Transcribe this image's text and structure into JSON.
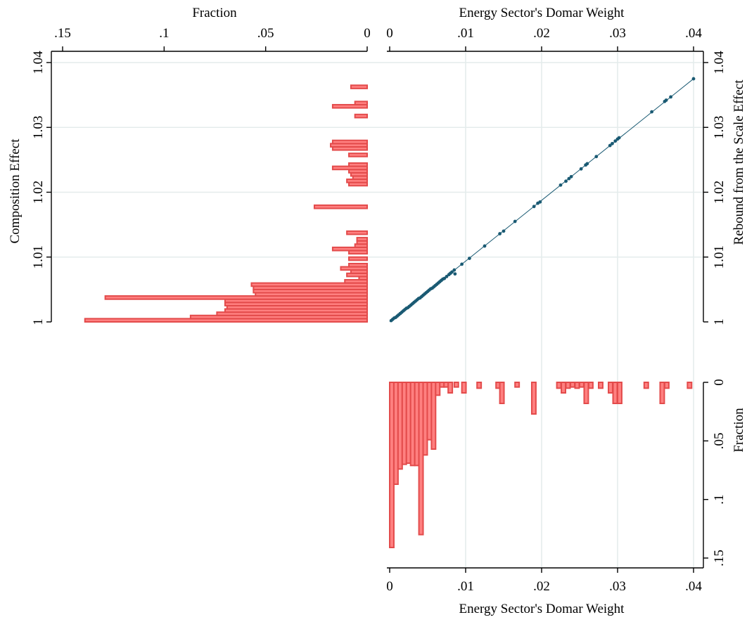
{
  "colors": {
    "bar_fill": "#ff8080",
    "bar_stroke": "#e34b4b",
    "scatter": "#1a5a73",
    "grid": "#e4ecec"
  },
  "chart_data": [
    {
      "id": "scatter",
      "type": "scatter",
      "xlabel": "Energy Sector's Domar Weight",
      "ylabel_left": "Composition Effect",
      "ylabel_right": "Rebound from the Scale Effect",
      "xlim": [
        0,
        0.04
      ],
      "ylim": [
        1,
        1.04
      ],
      "xticks": [
        {
          "v": 0,
          "label": "0"
        },
        {
          "v": 0.01,
          "label": ".01"
        },
        {
          "v": 0.02,
          "label": ".02"
        },
        {
          "v": 0.03,
          "label": ".03"
        },
        {
          "v": 0.04,
          "label": ".04"
        }
      ],
      "yticks": [
        {
          "v": 1,
          "label": "1"
        },
        {
          "v": 1.01,
          "label": "1.01"
        },
        {
          "v": 1.02,
          "label": "1.02"
        },
        {
          "v": 1.03,
          "label": "1.03"
        },
        {
          "v": 1.04,
          "label": "1.04"
        }
      ],
      "grid": true,
      "fit_line": {
        "x": [
          0,
          0.04
        ],
        "y": [
          1,
          1.0375
        ]
      },
      "points": [
        [
          0.0002,
          1.0002
        ],
        [
          0.0004,
          1.0004
        ],
        [
          0.0006,
          1.0006
        ],
        [
          0.0008,
          1.0007
        ],
        [
          0.001,
          1.0009
        ],
        [
          0.0012,
          1.0011
        ],
        [
          0.0014,
          1.0013
        ],
        [
          0.0016,
          1.0015
        ],
        [
          0.0018,
          1.0017
        ],
        [
          0.002,
          1.0019
        ],
        [
          0.0022,
          1.0021
        ],
        [
          0.0024,
          1.0022
        ],
        [
          0.0026,
          1.0024
        ],
        [
          0.0028,
          1.0026
        ],
        [
          0.003,
          1.0028
        ],
        [
          0.0032,
          1.003
        ],
        [
          0.0034,
          1.0032
        ],
        [
          0.0036,
          1.0034
        ],
        [
          0.0038,
          1.0036
        ],
        [
          0.004,
          1.0037
        ],
        [
          0.0042,
          1.0039
        ],
        [
          0.0044,
          1.0041
        ],
        [
          0.0046,
          1.0043
        ],
        [
          0.0048,
          1.0045
        ],
        [
          0.005,
          1.0047
        ],
        [
          0.0052,
          1.0049
        ],
        [
          0.0054,
          1.0051
        ],
        [
          0.0056,
          1.0052
        ],
        [
          0.0058,
          1.0054
        ],
        [
          0.006,
          1.0056
        ],
        [
          0.0062,
          1.0058
        ],
        [
          0.0064,
          1.006
        ],
        [
          0.0066,
          1.0062
        ],
        [
          0.0068,
          1.0064
        ],
        [
          0.007,
          1.0066
        ],
        [
          0.0072,
          1.0067
        ],
        [
          0.0075,
          1.007
        ],
        [
          0.0078,
          1.0073
        ],
        [
          0.008,
          1.0075
        ],
        [
          0.0082,
          1.0077
        ],
        [
          0.0085,
          1.008
        ],
        [
          0.0086,
          1.0074
        ],
        [
          0.0095,
          1.0089
        ],
        [
          0.0105,
          1.0098
        ],
        [
          0.0125,
          1.0117
        ],
        [
          0.0145,
          1.0136
        ],
        [
          0.015,
          1.014
        ],
        [
          0.0165,
          1.0155
        ],
        [
          0.019,
          1.0178
        ],
        [
          0.0195,
          1.0183
        ],
        [
          0.0198,
          1.0185
        ],
        [
          0.0225,
          1.0211
        ],
        [
          0.0232,
          1.0217
        ],
        [
          0.0236,
          1.0221
        ],
        [
          0.0239,
          1.0224
        ],
        [
          0.0252,
          1.0236
        ],
        [
          0.0258,
          1.0242
        ],
        [
          0.026,
          1.0244
        ],
        [
          0.0272,
          1.0255
        ],
        [
          0.029,
          1.0272
        ],
        [
          0.0293,
          1.0275
        ],
        [
          0.0297,
          1.0279
        ],
        [
          0.03,
          1.0282
        ],
        [
          0.0302,
          1.0284
        ],
        [
          0.0345,
          1.0324
        ],
        [
          0.0362,
          1.034
        ],
        [
          0.0364,
          1.0342
        ],
        [
          0.037,
          1.0347
        ],
        [
          0.04,
          1.0375
        ]
      ]
    },
    {
      "id": "left_hist",
      "type": "bar",
      "orientation": "horizontal",
      "value_label": "Fraction",
      "category_axis": "Composition Effect",
      "value_ticks": [
        {
          "v": 0.15,
          "label": ".15"
        },
        {
          "v": 0.1,
          "label": ".1"
        },
        {
          "v": 0.05,
          "label": ".05"
        },
        {
          "v": 0,
          "label": "0"
        }
      ],
      "value_range": [
        0,
        0.15
      ],
      "bin_width": 0.0005,
      "bins": [
        {
          "y": 1.0,
          "value": 0.139
        },
        {
          "y": 1.0005,
          "value": 0.087
        },
        {
          "y": 1.001,
          "value": 0.074
        },
        {
          "y": 1.0015,
          "value": 0.07
        },
        {
          "y": 1.002,
          "value": 0.069
        },
        {
          "y": 1.0025,
          "value": 0.07
        },
        {
          "y": 1.003,
          "value": 0.07
        },
        {
          "y": 1.0035,
          "value": 0.129
        },
        {
          "y": 1.004,
          "value": 0.055
        },
        {
          "y": 1.0045,
          "value": 0.056
        },
        {
          "y": 1.005,
          "value": 0.056
        },
        {
          "y": 1.0055,
          "value": 0.057
        },
        {
          "y": 1.006,
          "value": 0.011
        },
        {
          "y": 1.0065,
          "value": 0.004
        },
        {
          "y": 1.007,
          "value": 0.01
        },
        {
          "y": 1.0075,
          "value": 0.008
        },
        {
          "y": 1.008,
          "value": 0.013
        },
        {
          "y": 1.0085,
          "value": 0.009
        },
        {
          "y": 1.0095,
          "value": 0.009
        },
        {
          "y": 1.0105,
          "value": 0.009
        },
        {
          "y": 1.011,
          "value": 0.017
        },
        {
          "y": 1.0115,
          "value": 0.006
        },
        {
          "y": 1.012,
          "value": 0.005
        },
        {
          "y": 1.0125,
          "value": 0.005
        },
        {
          "y": 1.0135,
          "value": 0.01
        },
        {
          "y": 1.0175,
          "value": 0.026
        },
        {
          "y": 1.021,
          "value": 0.009
        },
        {
          "y": 1.0215,
          "value": 0.01
        },
        {
          "y": 1.022,
          "value": 0.007
        },
        {
          "y": 1.0225,
          "value": 0.008
        },
        {
          "y": 1.023,
          "value": 0.009
        },
        {
          "y": 1.0235,
          "value": 0.017
        },
        {
          "y": 1.024,
          "value": 0.009
        },
        {
          "y": 1.0255,
          "value": 0.009
        },
        {
          "y": 1.0265,
          "value": 0.017
        },
        {
          "y": 1.027,
          "value": 0.018
        },
        {
          "y": 1.0275,
          "value": 0.017
        },
        {
          "y": 1.0315,
          "value": 0.006
        },
        {
          "y": 1.033,
          "value": 0.017
        },
        {
          "y": 1.0335,
          "value": 0.006
        },
        {
          "y": 1.036,
          "value": 0.008
        }
      ]
    },
    {
      "id": "bottom_hist",
      "type": "bar",
      "orientation": "vertical",
      "value_label": "Fraction",
      "category_label": "Energy Sector's Domar Weight",
      "category_ticks": [
        {
          "v": 0,
          "label": "0"
        },
        {
          "v": 0.01,
          "label": ".01"
        },
        {
          "v": 0.02,
          "label": ".02"
        },
        {
          "v": 0.03,
          "label": ".03"
        },
        {
          "v": 0.04,
          "label": ".04"
        }
      ],
      "value_ticks": [
        {
          "v": 0,
          "label": "0"
        },
        {
          "v": 0.05,
          "label": ".05"
        },
        {
          "v": 0.1,
          "label": ".1"
        },
        {
          "v": 0.15,
          "label": ".15"
        }
      ],
      "value_range": [
        0,
        0.15
      ],
      "bin_width": 0.00055,
      "bins": [
        {
          "x": 0.0,
          "value": 0.141
        },
        {
          "x": 0.00055,
          "value": 0.087
        },
        {
          "x": 0.0011,
          "value": 0.074
        },
        {
          "x": 0.00165,
          "value": 0.07
        },
        {
          "x": 0.0022,
          "value": 0.069
        },
        {
          "x": 0.00275,
          "value": 0.071
        },
        {
          "x": 0.0033,
          "value": 0.071
        },
        {
          "x": 0.00385,
          "value": 0.13
        },
        {
          "x": 0.0044,
          "value": 0.062
        },
        {
          "x": 0.00495,
          "value": 0.049
        },
        {
          "x": 0.0055,
          "value": 0.057
        },
        {
          "x": 0.00605,
          "value": 0.011
        },
        {
          "x": 0.0066,
          "value": 0.004
        },
        {
          "x": 0.00715,
          "value": 0.004
        },
        {
          "x": 0.0077,
          "value": 0.009
        },
        {
          "x": 0.0085,
          "value": 0.004
        },
        {
          "x": 0.0095,
          "value": 0.009
        },
        {
          "x": 0.0115,
          "value": 0.005
        },
        {
          "x": 0.014,
          "value": 0.005
        },
        {
          "x": 0.0145,
          "value": 0.018
        },
        {
          "x": 0.0165,
          "value": 0.004
        },
        {
          "x": 0.0187,
          "value": 0.027
        },
        {
          "x": 0.022,
          "value": 0.005
        },
        {
          "x": 0.0226,
          "value": 0.009
        },
        {
          "x": 0.0232,
          "value": 0.005
        },
        {
          "x": 0.0238,
          "value": 0.004
        },
        {
          "x": 0.0244,
          "value": 0.005
        },
        {
          "x": 0.025,
          "value": 0.004
        },
        {
          "x": 0.0256,
          "value": 0.018
        },
        {
          "x": 0.0262,
          "value": 0.005
        },
        {
          "x": 0.0275,
          "value": 0.005
        },
        {
          "x": 0.0288,
          "value": 0.009
        },
        {
          "x": 0.0294,
          "value": 0.018
        },
        {
          "x": 0.03,
          "value": 0.018
        },
        {
          "x": 0.0335,
          "value": 0.005
        },
        {
          "x": 0.0356,
          "value": 0.018
        },
        {
          "x": 0.0362,
          "value": 0.005
        },
        {
          "x": 0.0392,
          "value": 0.005
        }
      ]
    }
  ]
}
